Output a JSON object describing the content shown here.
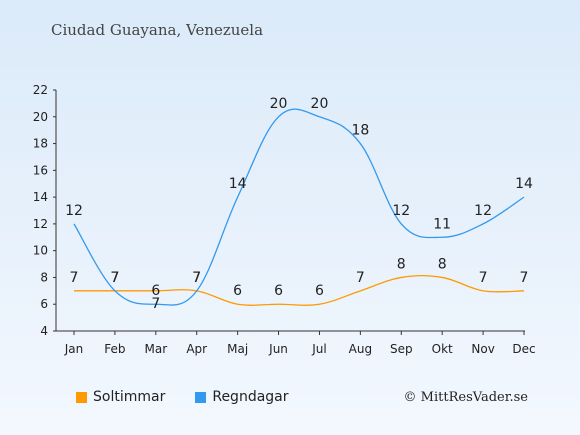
{
  "chart_data": {
    "type": "line",
    "title": "Ciudad Guayana, Venezuela",
    "categories": [
      "Jan",
      "Feb",
      "Mar",
      "Apr",
      "Maj",
      "Jun",
      "Jul",
      "Aug",
      "Sep",
      "Okt",
      "Nov",
      "Dec"
    ],
    "ylim": [
      4,
      22
    ],
    "yticks": [
      4,
      6,
      8,
      10,
      12,
      14,
      16,
      18,
      20,
      22
    ],
    "grid": false,
    "legend_position": "bottom-left",
    "series": [
      {
        "name": "Soltimmar",
        "color": "#ff9900",
        "values": [
          7,
          7,
          7,
          7,
          6,
          6,
          6,
          7,
          8,
          8,
          7,
          7
        ]
      },
      {
        "name": "Regndagar",
        "color": "#3399ee",
        "values": [
          12,
          7,
          6,
          7,
          14,
          20,
          20,
          18,
          12,
          11,
          12,
          14
        ]
      }
    ]
  },
  "copyright": "© MittResVader.se"
}
